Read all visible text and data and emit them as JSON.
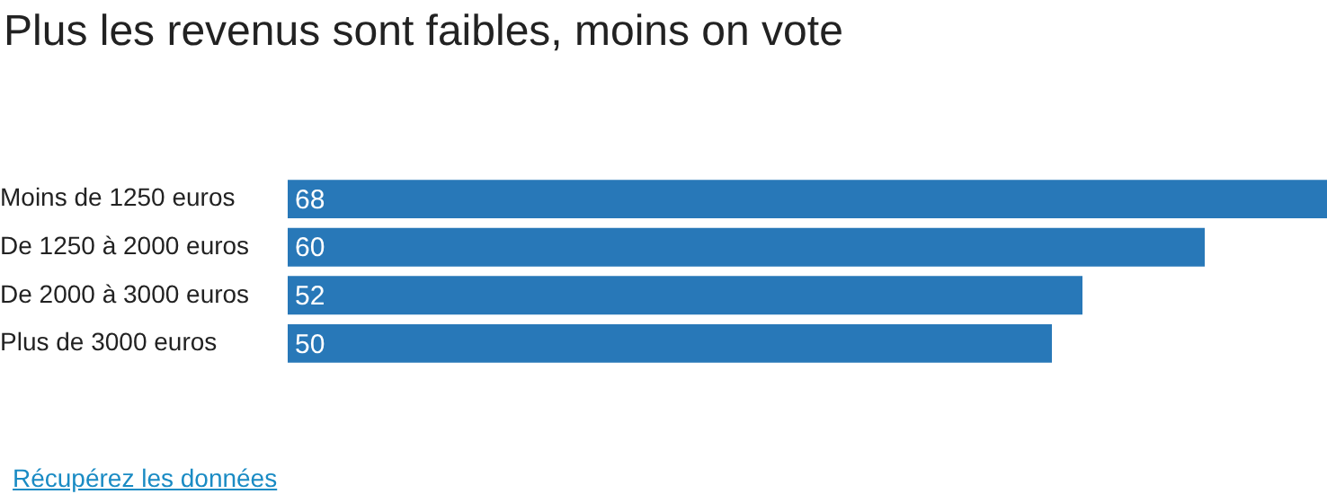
{
  "chart_data": {
    "type": "bar",
    "orientation": "horizontal",
    "title": "Plus les revenus sont faibles, moins on vote",
    "categories": [
      "Moins de 1250 euros",
      "De 1250 à 2000 euros",
      "De 2000 à 3000 euros",
      "Plus de 3000 euros"
    ],
    "values": [
      68,
      60,
      52,
      50
    ],
    "color": "#2878b8",
    "xlim": [
      0,
      68
    ],
    "data_labels": true,
    "annotations": [
      "Récupérez les données"
    ]
  }
}
